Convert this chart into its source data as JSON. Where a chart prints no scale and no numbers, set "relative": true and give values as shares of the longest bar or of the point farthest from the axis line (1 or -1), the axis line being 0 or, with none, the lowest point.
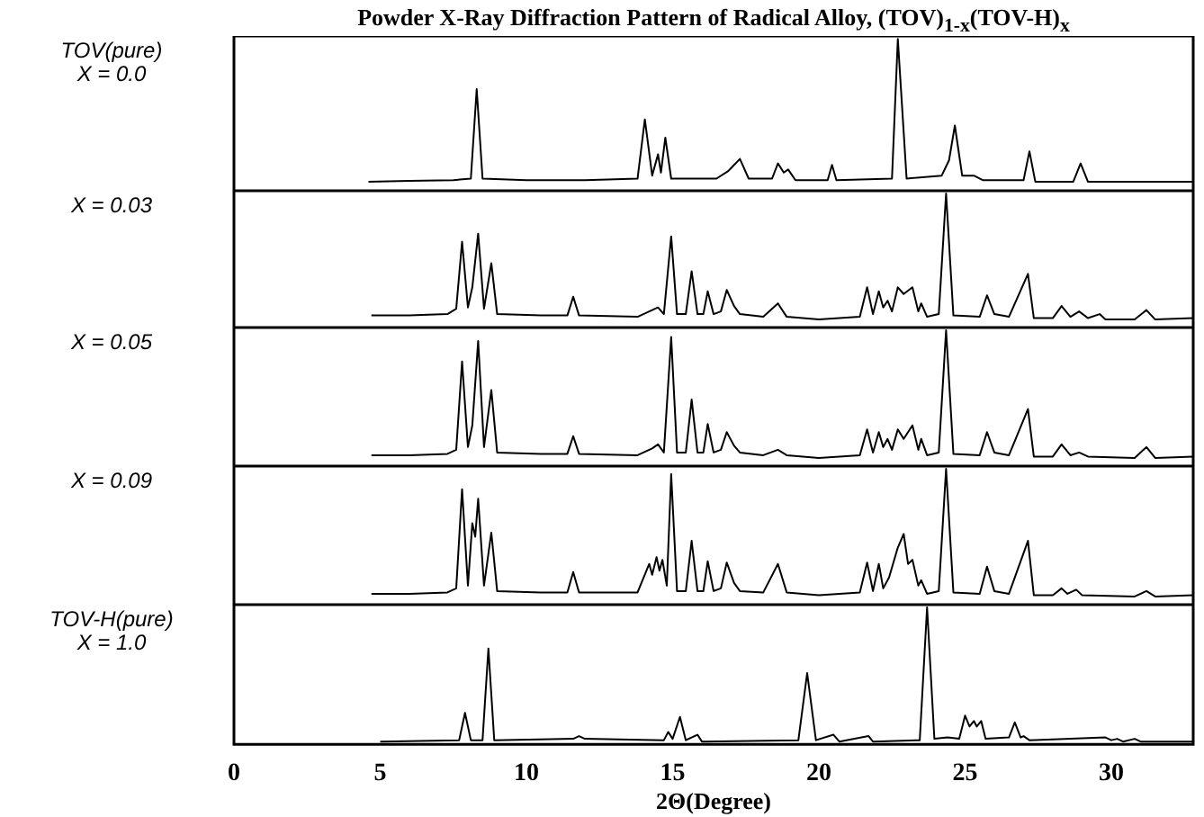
{
  "chart_data": [
    {
      "type": "line",
      "title": "Powder X-Ray Diffraction Pattern of Radical Alloy, (TOV)$_{1-x}$(TOV-H)$_{x}$",
      "annotations": [
        "TOV(pure)",
        "X = 0.0"
      ],
      "relative": true,
      "xlim": [
        0,
        32.8
      ],
      "tick_labels": false,
      "marker": "none",
      "series": [
        {
          "color": "#000000",
          "x": [
            4.6,
            6,
            7.5,
            8.1,
            8.3,
            8.5,
            10,
            12,
            13.8,
            14.05,
            14.3,
            14.5,
            14.6,
            14.75,
            14.95,
            16.5,
            16.9,
            17.0,
            17.3,
            17.6,
            18.4,
            18.6,
            18.8,
            18.95,
            19.2,
            20.3,
            20.45,
            20.6,
            22.5,
            22.7,
            23.0,
            24.2,
            24.45,
            24.65,
            24.9,
            25.3,
            25.6,
            27.0,
            27.2,
            27.4,
            28.7,
            28.95,
            29.2,
            31,
            32.8
          ],
          "values": [
            0.06,
            0.065,
            0.07,
            0.08,
            0.67,
            0.08,
            0.07,
            0.07,
            0.08,
            0.47,
            0.1,
            0.24,
            0.12,
            0.35,
            0.08,
            0.08,
            0.13,
            0.15,
            0.21,
            0.08,
            0.08,
            0.18,
            0.12,
            0.14,
            0.07,
            0.07,
            0.17,
            0.07,
            0.08,
            1,
            0.08,
            0.1,
            0.2,
            0.43,
            0.1,
            0.1,
            0.07,
            0.07,
            0.26,
            0.06,
            0.06,
            0.18,
            0.06,
            0.06,
            0.06
          ]
        }
      ]
    },
    {
      "type": "line",
      "annotations": [
        "X = 0.03"
      ],
      "relative": true,
      "xlim": [
        0,
        32.8
      ],
      "tick_labels": false,
      "marker": "none",
      "series": [
        {
          "color": "#000000",
          "x": [
            4.7,
            6,
            7.3,
            7.6,
            7.8,
            8.0,
            8.15,
            8.35,
            8.55,
            8.8,
            9.0,
            10.5,
            11.4,
            11.6,
            11.8,
            13.8,
            14.3,
            14.5,
            14.7,
            14.95,
            15.15,
            15.45,
            15.65,
            15.85,
            16.05,
            16.2,
            16.4,
            16.65,
            16.85,
            17.1,
            17.3,
            18.1,
            18.6,
            18.9,
            20.0,
            21.4,
            21.65,
            21.85,
            22.05,
            22.2,
            22.35,
            22.5,
            22.7,
            22.9,
            23.2,
            23.4,
            23.5,
            23.7,
            24.1,
            24.35,
            24.6,
            25.5,
            25.75,
            26.0,
            26.5,
            27.15,
            27.35,
            28.0,
            28.3,
            28.6,
            28.9,
            29.2,
            29.6,
            29.8,
            30.8,
            31.2,
            31.5,
            32.8
          ],
          "values": [
            0.09,
            0.09,
            0.1,
            0.14,
            0.64,
            0.15,
            0.3,
            0.7,
            0.14,
            0.48,
            0.1,
            0.09,
            0.09,
            0.23,
            0.09,
            0.08,
            0.13,
            0.15,
            0.1,
            0.68,
            0.1,
            0.1,
            0.42,
            0.1,
            0.1,
            0.27,
            0.1,
            0.12,
            0.28,
            0.16,
            0.1,
            0.08,
            0.18,
            0.08,
            0.06,
            0.08,
            0.3,
            0.1,
            0.27,
            0.15,
            0.2,
            0.12,
            0.3,
            0.25,
            0.3,
            0.12,
            0.18,
            0.08,
            0.1,
            1,
            0.09,
            0.08,
            0.24,
            0.1,
            0.08,
            0.4,
            0.07,
            0.07,
            0.16,
            0.08,
            0.12,
            0.07,
            0.1,
            0.06,
            0.06,
            0.13,
            0.06,
            0.07
          ]
        }
      ]
    },
    {
      "type": "line",
      "annotations": [
        "X = 0.05"
      ],
      "relative": true,
      "xlim": [
        0,
        32.8
      ],
      "tick_labels": false,
      "marker": "none",
      "series": [
        {
          "color": "#000000",
          "x": [
            4.7,
            6,
            7.3,
            7.6,
            7.8,
            8.0,
            8.15,
            8.35,
            8.55,
            8.8,
            9.0,
            10.5,
            11.4,
            11.6,
            11.8,
            13.8,
            14.3,
            14.5,
            14.7,
            14.95,
            15.15,
            15.45,
            15.65,
            15.85,
            16.05,
            16.2,
            16.4,
            16.65,
            16.85,
            17.1,
            17.3,
            18.1,
            18.6,
            18.9,
            20.0,
            21.4,
            21.65,
            21.85,
            22.05,
            22.2,
            22.35,
            22.5,
            22.7,
            22.9,
            23.2,
            23.4,
            23.5,
            23.7,
            24.1,
            24.35,
            24.6,
            25.5,
            25.75,
            26.0,
            26.5,
            27.15,
            27.35,
            28.0,
            28.3,
            28.6,
            28.9,
            29.2,
            30.8,
            31.2,
            31.5,
            32.8
          ],
          "values": [
            0.08,
            0.08,
            0.09,
            0.12,
            0.77,
            0.14,
            0.3,
            0.92,
            0.14,
            0.56,
            0.1,
            0.09,
            0.09,
            0.22,
            0.09,
            0.08,
            0.13,
            0.16,
            0.1,
            0.95,
            0.1,
            0.1,
            0.49,
            0.1,
            0.1,
            0.31,
            0.1,
            0.12,
            0.25,
            0.15,
            0.1,
            0.08,
            0.12,
            0.08,
            0.06,
            0.08,
            0.27,
            0.1,
            0.25,
            0.14,
            0.2,
            0.12,
            0.27,
            0.2,
            0.3,
            0.12,
            0.2,
            0.08,
            0.1,
            1,
            0.09,
            0.08,
            0.25,
            0.1,
            0.08,
            0.42,
            0.07,
            0.07,
            0.16,
            0.08,
            0.1,
            0.07,
            0.06,
            0.14,
            0.06,
            0.07
          ]
        }
      ]
    },
    {
      "type": "line",
      "annotations": [
        "X = 0.09"
      ],
      "relative": true,
      "xlim": [
        0,
        32.8
      ],
      "tick_labels": false,
      "marker": "none",
      "series": [
        {
          "color": "#000000",
          "x": [
            4.7,
            6,
            7.3,
            7.6,
            7.8,
            8.0,
            8.15,
            8.25,
            8.35,
            8.55,
            8.8,
            9.0,
            10.5,
            11.4,
            11.6,
            11.8,
            13.8,
            14.2,
            14.3,
            14.45,
            14.55,
            14.65,
            14.8,
            14.95,
            15.15,
            15.45,
            15.65,
            15.85,
            16.05,
            16.2,
            16.4,
            16.65,
            16.85,
            17.1,
            17.3,
            18.1,
            18.6,
            18.9,
            20.0,
            21.4,
            21.65,
            21.85,
            22.05,
            22.2,
            22.4,
            22.7,
            22.9,
            23.05,
            23.2,
            23.4,
            23.5,
            23.7,
            24.1,
            24.35,
            24.6,
            25.5,
            25.75,
            26.0,
            26.5,
            27.15,
            27.35,
            28.0,
            28.3,
            28.5,
            28.8,
            29.0,
            30.8,
            31.2,
            31.5,
            32.8
          ],
          "values": [
            0.08,
            0.08,
            0.09,
            0.12,
            0.85,
            0.14,
            0.6,
            0.5,
            0.78,
            0.14,
            0.53,
            0.1,
            0.09,
            0.09,
            0.24,
            0.09,
            0.09,
            0.3,
            0.22,
            0.35,
            0.25,
            0.33,
            0.14,
            0.96,
            0.1,
            0.1,
            0.47,
            0.1,
            0.1,
            0.32,
            0.1,
            0.12,
            0.31,
            0.16,
            0.1,
            0.09,
            0.3,
            0.09,
            0.07,
            0.09,
            0.31,
            0.1,
            0.3,
            0.12,
            0.2,
            0.42,
            0.52,
            0.3,
            0.33,
            0.14,
            0.18,
            0.08,
            0.1,
            1,
            0.09,
            0.08,
            0.28,
            0.1,
            0.08,
            0.47,
            0.07,
            0.07,
            0.12,
            0.08,
            0.11,
            0.07,
            0.06,
            0.1,
            0.06,
            0.07
          ]
        }
      ]
    },
    {
      "type": "line",
      "annotations": [
        "TOV-H(pure)",
        "X = 1.0"
      ],
      "xlabel": "2Θ(Degree)",
      "relative": true,
      "xlim": [
        0,
        32.8
      ],
      "xticks": [
        0,
        5,
        10,
        15,
        20,
        25,
        30
      ],
      "tick_labels": "x",
      "marker": "none",
      "series": [
        {
          "color": "#000000",
          "x": [
            5.0,
            7.7,
            7.9,
            8.1,
            8.5,
            8.7,
            8.9,
            11.6,
            11.8,
            12.0,
            14.7,
            14.85,
            15.0,
            15.25,
            15.45,
            15.85,
            16.0,
            19.3,
            19.6,
            19.9,
            20.5,
            20.7,
            21.7,
            21.85,
            23.45,
            23.7,
            23.95,
            24.4,
            24.8,
            25.0,
            25.15,
            25.3,
            25.4,
            25.55,
            25.7,
            26.5,
            26.7,
            26.9,
            27.0,
            27.2,
            29.8,
            30.0,
            30.2,
            30.4,
            30.8,
            31,
            32.8
          ],
          "values": [
            0.02,
            0.03,
            0.23,
            0.03,
            0.03,
            0.7,
            0.03,
            0.04,
            0.06,
            0.04,
            0.03,
            0.09,
            0.04,
            0.2,
            0.03,
            0.07,
            0.02,
            0.03,
            0.52,
            0.03,
            0.07,
            0.02,
            0.06,
            0.02,
            0.03,
            1,
            0.04,
            0.05,
            0.04,
            0.21,
            0.13,
            0.17,
            0.13,
            0.17,
            0.04,
            0.05,
            0.16,
            0.05,
            0.06,
            0.03,
            0.05,
            0.03,
            0.04,
            0.02,
            0.04,
            0.02,
            0.02
          ]
        }
      ]
    }
  ]
}
